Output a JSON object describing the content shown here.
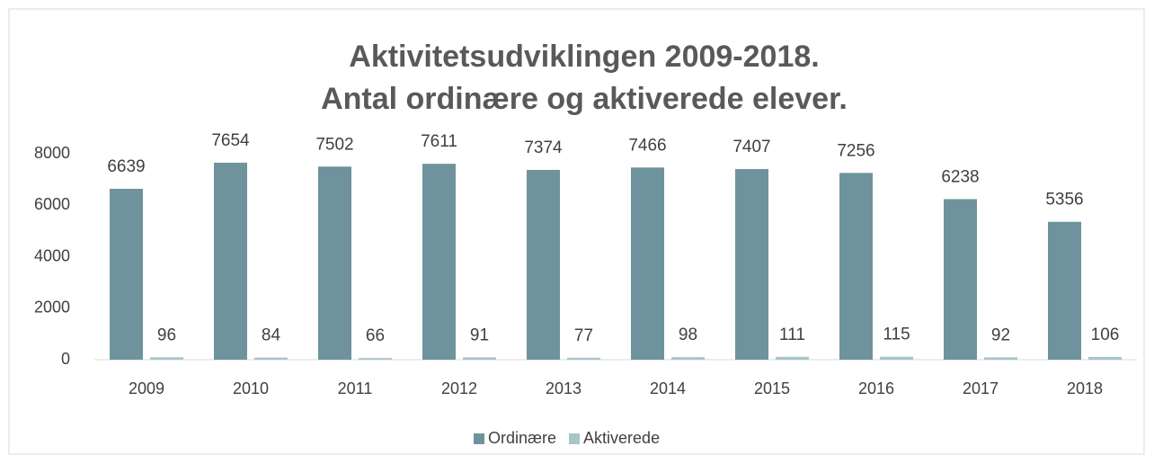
{
  "chart_data": {
    "type": "bar",
    "title": [
      "Aktivitetsudviklingen 2009-2018.",
      "Antal ordinære og aktiverede elever."
    ],
    "categories": [
      "2009",
      "2010",
      "2011",
      "2012",
      "2013",
      "2014",
      "2015",
      "2016",
      "2017",
      "2018"
    ],
    "series": [
      {
        "name": "Ordinære",
        "color": "#6f939c",
        "values": [
          6639,
          7654,
          7502,
          7611,
          7374,
          7466,
          7407,
          7256,
          6238,
          5356
        ]
      },
      {
        "name": "Aktiverede",
        "color": "#a8c5cb",
        "values": [
          96,
          84,
          66,
          91,
          77,
          98,
          111,
          115,
          92,
          106
        ]
      }
    ],
    "ylim": [
      0,
      8000
    ],
    "yticks": [
      0,
      2000,
      4000,
      6000,
      8000
    ],
    "grid": false,
    "legend": "bottom"
  }
}
